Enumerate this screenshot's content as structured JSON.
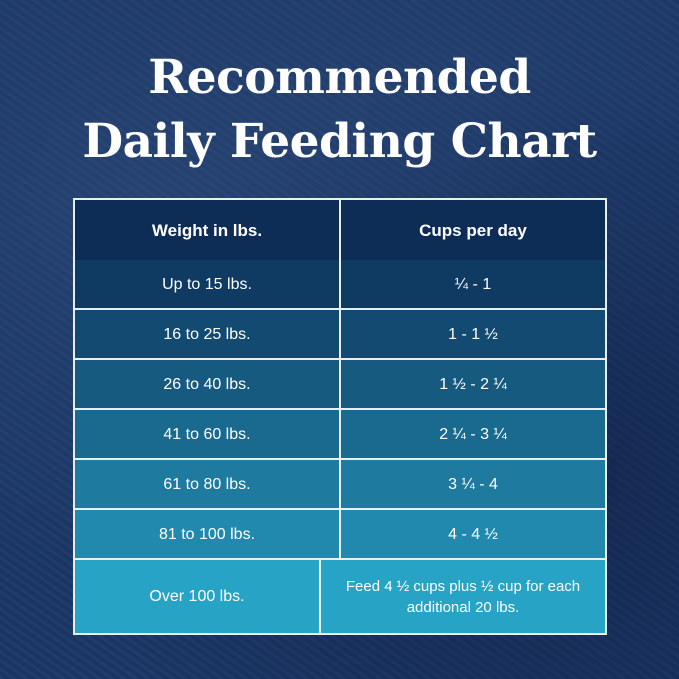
{
  "title": {
    "line1": "Recommended",
    "line2": "Daily Feeding Chart"
  },
  "table": {
    "headers": [
      "Weight in lbs.",
      "Cups per day"
    ],
    "rows": [
      {
        "weight": "Up to 15 lbs.",
        "cups": "¼  - 1"
      },
      {
        "weight": "16 to 25 lbs.",
        "cups": "1 - 1 ½"
      },
      {
        "weight": "26 to 40 lbs.",
        "cups": "1 ½  - 2 ¼"
      },
      {
        "weight": "41 to 60 lbs.",
        "cups": "2 ¼  - 3 ¼"
      },
      {
        "weight": "61 to 80 lbs.",
        "cups": "3 ¼  - 4"
      },
      {
        "weight": "81 to 100 lbs.",
        "cups": "4  - 4 ½"
      },
      {
        "weight": "Over 100 lbs.",
        "cups": "Feed 4 ½ cups plus ½ cup for each additional 20 lbs."
      }
    ]
  },
  "colors": {
    "header": "#0d2d57",
    "rows": [
      "#0f3a62",
      "#134a72",
      "#175a80",
      "#1a698e",
      "#1e7a9f",
      "#2189ad",
      "#26a3c5"
    ],
    "border": "#e9eef3",
    "background": "#1b3766"
  }
}
